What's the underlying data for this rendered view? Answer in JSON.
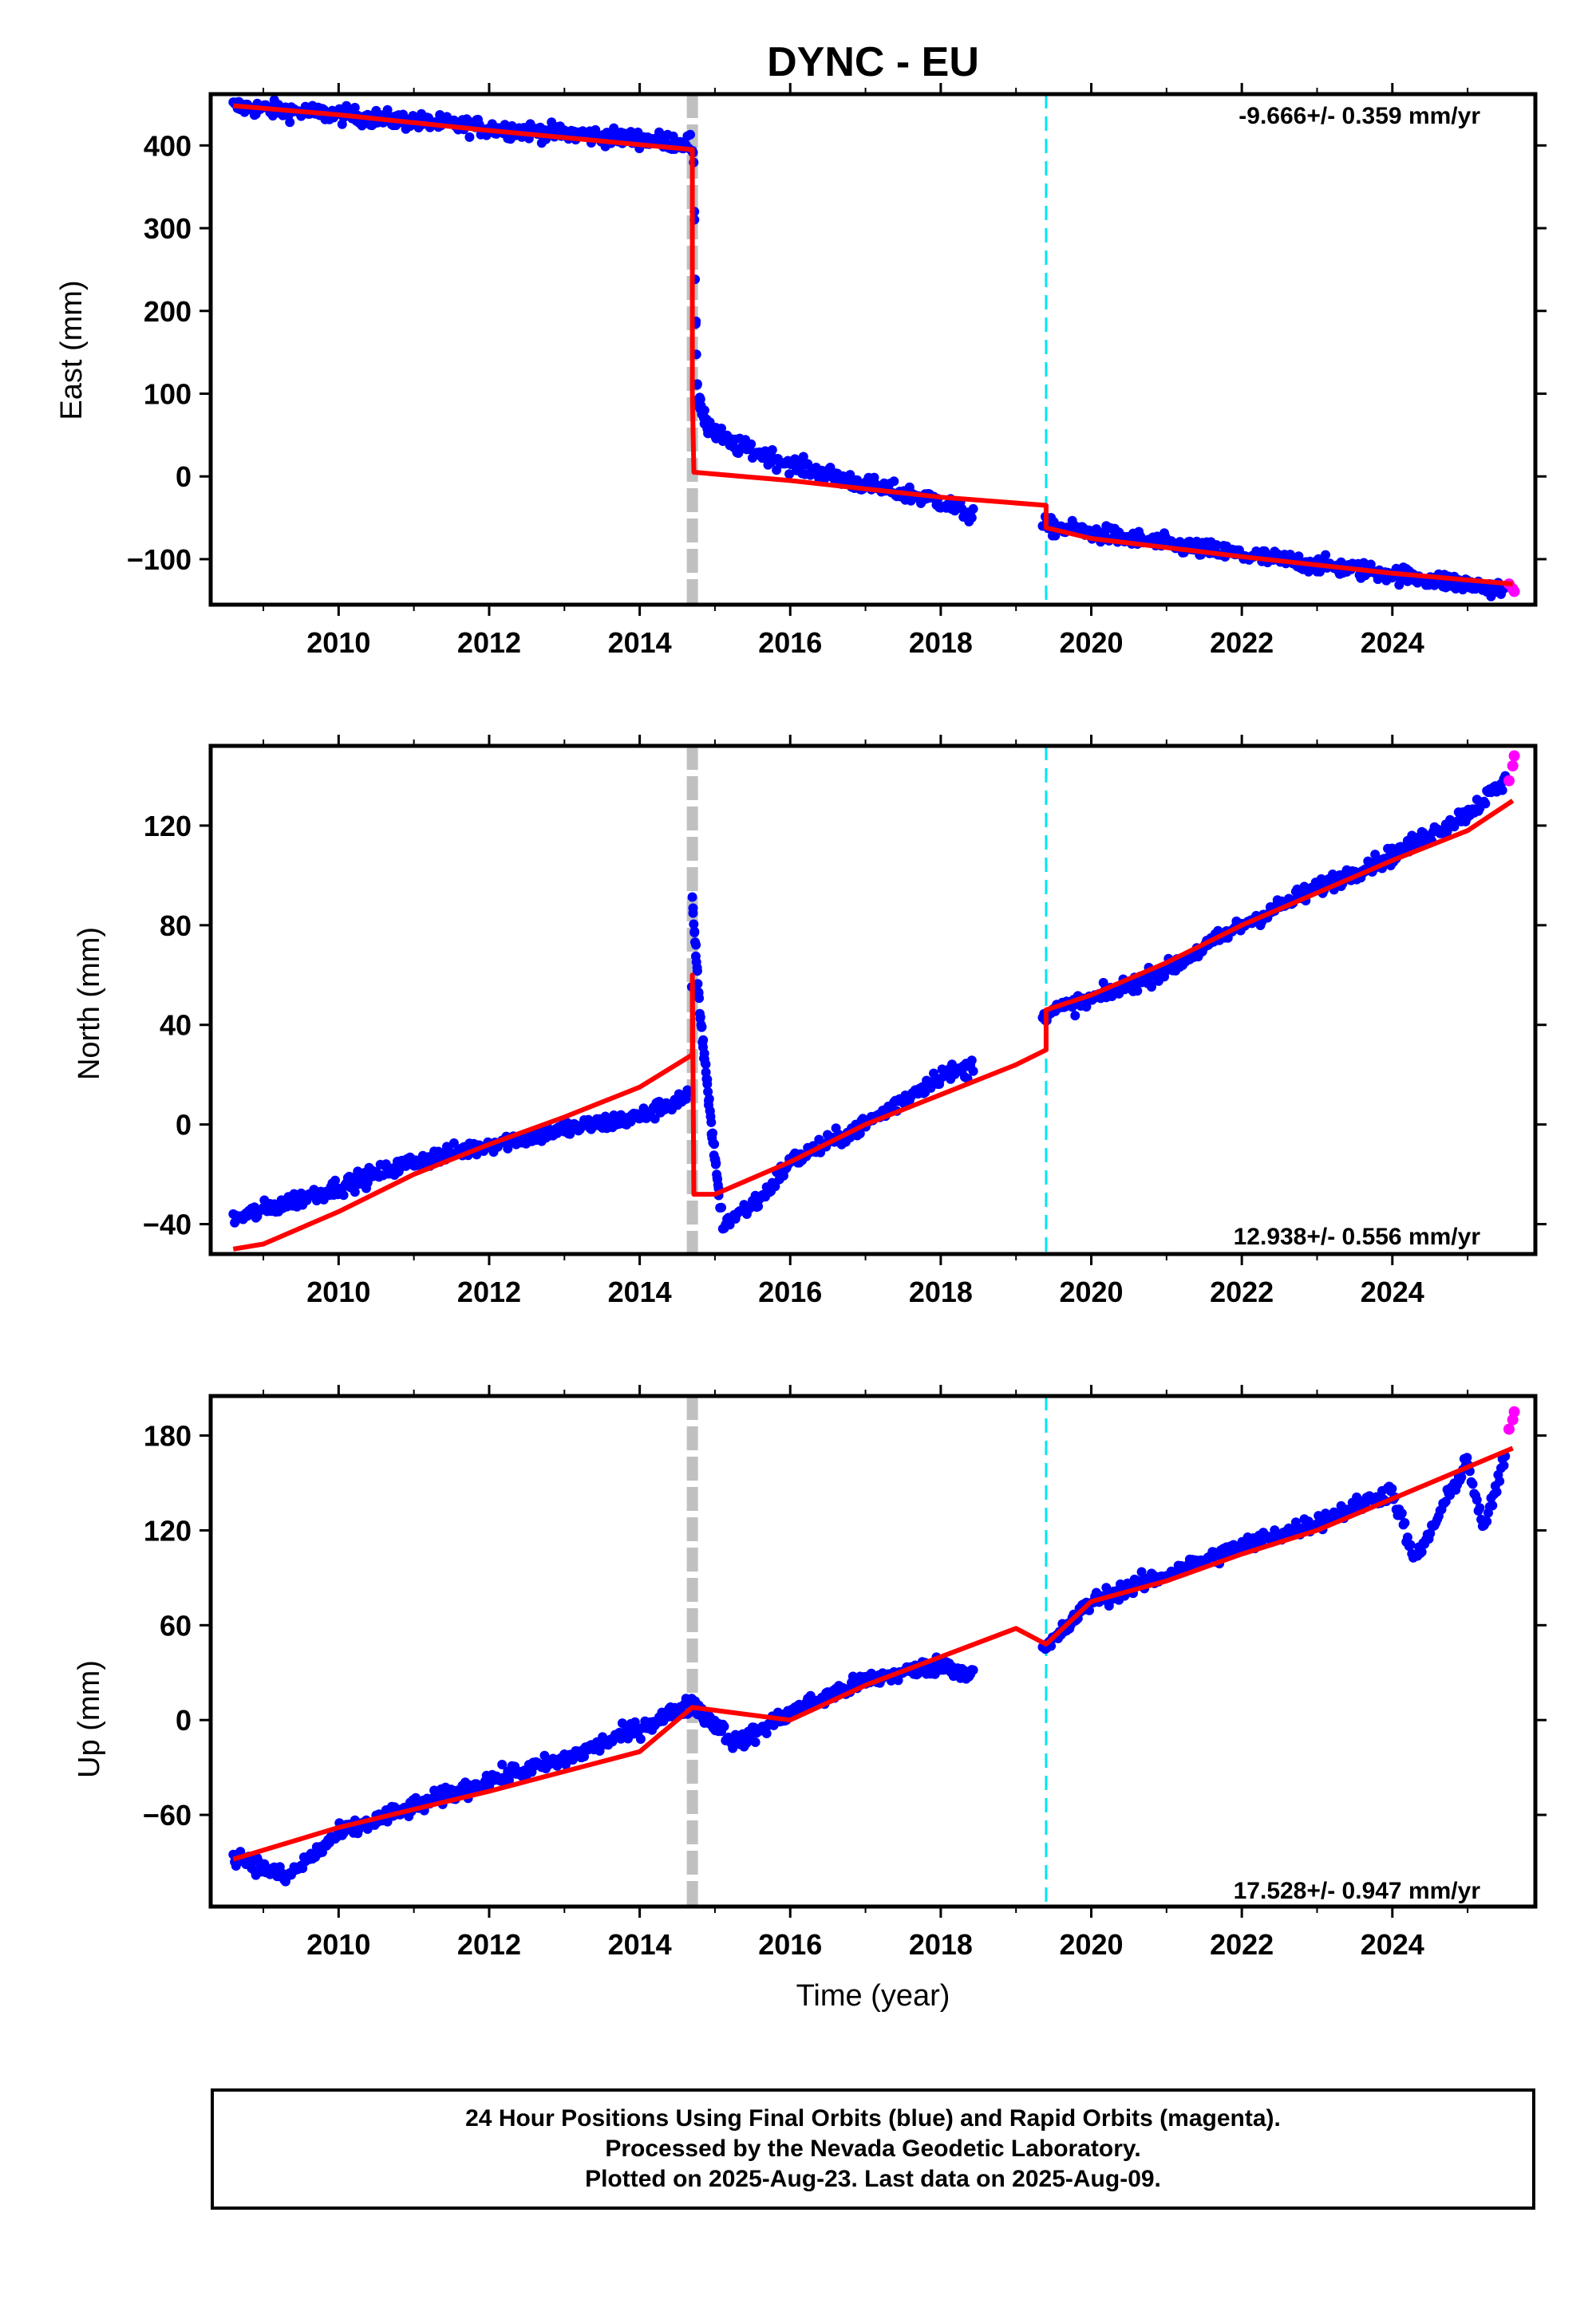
{
  "title": "DYNC - EU",
  "colors": {
    "final": "#0000ff",
    "rapid": "#ff00ff",
    "model": "#ff0000",
    "event_gray": "#c0c0c0",
    "event_cyan": "#00e5ee"
  },
  "xlabel": "Time (year)",
  "footer": {
    "line1": "24 Hour Positions Using Final Orbits (blue) and Rapid Orbits (magenta).",
    "line2": "Processed by the Nevada Geodetic Laboratory.",
    "line3": "Plotted on 2025-Aug-23. Last data on 2025-Aug-09."
  },
  "chart_data": [
    {
      "type": "scatter",
      "ylabel": "East (mm)",
      "rate": "-9.666+/- 0.359 mm/yr",
      "xlim": [
        2008.3,
        2025.9
      ],
      "ylim": [
        -155,
        462
      ],
      "xticks": [
        "2010",
        "2012",
        "2014",
        "2016",
        "2018",
        "2020",
        "2022",
        "2024"
      ],
      "yticks": [
        "400",
        "300",
        "200",
        "100",
        "0",
        "−100"
      ],
      "yticks_values": [
        400,
        300,
        200,
        100,
        0,
        -100
      ],
      "events": [
        {
          "x": 2014.7,
          "style": "gray-dashed"
        },
        {
          "x": 2019.4,
          "style": "cyan-dashed"
        }
      ],
      "observed_trend": [
        [
          2008.6,
          447
        ],
        [
          2010,
          437
        ],
        [
          2012,
          421
        ],
        [
          2014.68,
          403
        ],
        [
          2014.72,
          380
        ],
        [
          2014.74,
          200
        ],
        [
          2014.77,
          95
        ],
        [
          2014.9,
          60
        ],
        [
          2015.2,
          40
        ],
        [
          2016,
          15
        ],
        [
          2017,
          -10
        ],
        [
          2018,
          -30
        ],
        [
          2018.35,
          -45
        ],
        [
          2019.4,
          -60
        ],
        [
          2020,
          -68
        ],
        [
          2022,
          -95
        ],
        [
          2024,
          -118
        ],
        [
          2025.6,
          -138
        ]
      ],
      "model": [
        [
          2008.6,
          448
        ],
        [
          2010,
          437
        ],
        [
          2012,
          418
        ],
        [
          2014.7,
          395
        ],
        [
          2014.7,
          100
        ],
        [
          2014.72,
          5
        ],
        [
          2016,
          -5
        ],
        [
          2018,
          -25
        ],
        [
          2019.4,
          -35
        ],
        [
          2019.4,
          -62
        ],
        [
          2020,
          -75
        ],
        [
          2022,
          -97
        ],
        [
          2024,
          -117
        ],
        [
          2025.6,
          -130
        ]
      ],
      "rapid": [
        [
          2025.55,
          -130
        ],
        [
          2025.6,
          -136
        ],
        [
          2025.62,
          -139
        ]
      ]
    },
    {
      "type": "scatter",
      "ylabel": "North (mm)",
      "rate": "12.938+/- 0.556 mm/yr",
      "xlim": [
        2008.3,
        2025.9
      ],
      "ylim": [
        -52,
        152
      ],
      "xticks": [
        "2010",
        "2012",
        "2014",
        "2016",
        "2018",
        "2020",
        "2022",
        "2024"
      ],
      "yticks": [
        "120",
        "80",
        "40",
        "0",
        "−40"
      ],
      "yticks_values": [
        120,
        80,
        40,
        0,
        -40
      ],
      "events": [
        {
          "x": 2014.7,
          "style": "gray-dashed"
        },
        {
          "x": 2019.4,
          "style": "cyan-dashed"
        }
      ],
      "observed_trend": [
        [
          2008.6,
          -38
        ],
        [
          2010,
          -25
        ],
        [
          2011,
          -15
        ],
        [
          2012,
          -8
        ],
        [
          2013,
          -2
        ],
        [
          2014,
          3
        ],
        [
          2014.68,
          12
        ],
        [
          2014.7,
          90
        ],
        [
          2014.8,
          45
        ],
        [
          2014.95,
          0
        ],
        [
          2015.1,
          -40
        ],
        [
          2015.6,
          -30
        ],
        [
          2016,
          -15
        ],
        [
          2017,
          0
        ],
        [
          2018,
          20
        ],
        [
          2018.35,
          22
        ],
        [
          2019.4,
          45
        ],
        [
          2020,
          50
        ],
        [
          2021,
          62
        ],
        [
          2022,
          80
        ],
        [
          2023,
          95
        ],
        [
          2024,
          108
        ],
        [
          2025,
          125
        ],
        [
          2025.6,
          140
        ]
      ],
      "model": [
        [
          2008.6,
          -50
        ],
        [
          2009,
          -48
        ],
        [
          2010,
          -35
        ],
        [
          2011,
          -20
        ],
        [
          2012,
          -8
        ],
        [
          2013,
          3
        ],
        [
          2014,
          15
        ],
        [
          2014.7,
          28
        ],
        [
          2014.7,
          60
        ],
        [
          2014.72,
          -28
        ],
        [
          2015,
          -28
        ],
        [
          2016,
          -15
        ],
        [
          2017,
          0
        ],
        [
          2018,
          12
        ],
        [
          2019,
          24
        ],
        [
          2019.4,
          30
        ],
        [
          2019.4,
          46
        ],
        [
          2020,
          52
        ],
        [
          2021,
          65
        ],
        [
          2022,
          80
        ],
        [
          2023,
          93
        ],
        [
          2024,
          106
        ],
        [
          2025,
          118
        ],
        [
          2025.6,
          130
        ]
      ],
      "rapid": [
        [
          2025.55,
          138
        ],
        [
          2025.6,
          144
        ],
        [
          2025.62,
          148
        ]
      ]
    },
    {
      "type": "scatter",
      "ylabel": "Up (mm)",
      "rate": "17.528+/- 0.947 mm/yr",
      "xlim": [
        2008.3,
        2025.9
      ],
      "ylim": [
        -118,
        205
      ],
      "xticks": [
        "2010",
        "2012",
        "2014",
        "2016",
        "2018",
        "2020",
        "2022",
        "2024"
      ],
      "yticks": [
        "180",
        "120",
        "60",
        "0",
        "−60"
      ],
      "yticks_values": [
        180,
        120,
        60,
        0,
        -60
      ],
      "events": [
        {
          "x": 2014.7,
          "style": "gray-dashed"
        },
        {
          "x": 2019.4,
          "style": "cyan-dashed"
        }
      ],
      "observed_trend": [
        [
          2008.6,
          -85
        ],
        [
          2009.3,
          -100
        ],
        [
          2010,
          -72
        ],
        [
          2011,
          -55
        ],
        [
          2012,
          -38
        ],
        [
          2013,
          -25
        ],
        [
          2014,
          -5
        ],
        [
          2014.7,
          10
        ],
        [
          2015.3,
          -15
        ],
        [
          2016,
          5
        ],
        [
          2017,
          25
        ],
        [
          2018,
          35
        ],
        [
          2018.4,
          30
        ],
        [
          2019.4,
          45
        ],
        [
          2020,
          75
        ],
        [
          2021,
          92
        ],
        [
          2022,
          110
        ],
        [
          2023,
          125
        ],
        [
          2024,
          145
        ],
        [
          2024.3,
          100
        ],
        [
          2025,
          165
        ],
        [
          2025.2,
          120
        ],
        [
          2025.6,
          180
        ]
      ],
      "model": [
        [
          2008.6,
          -88
        ],
        [
          2010,
          -68
        ],
        [
          2012,
          -45
        ],
        [
          2014,
          -20
        ],
        [
          2014.7,
          8
        ],
        [
          2016,
          0
        ],
        [
          2017,
          22
        ],
        [
          2018,
          40
        ],
        [
          2019,
          58
        ],
        [
          2019.4,
          48
        ],
        [
          2020,
          75
        ],
        [
          2021,
          88
        ],
        [
          2022,
          105
        ],
        [
          2023,
          120
        ],
        [
          2024,
          140
        ],
        [
          2025,
          160
        ],
        [
          2025.6,
          172
        ]
      ],
      "rapid": [
        [
          2025.55,
          184
        ],
        [
          2025.6,
          190
        ],
        [
          2025.62,
          195
        ]
      ]
    }
  ]
}
